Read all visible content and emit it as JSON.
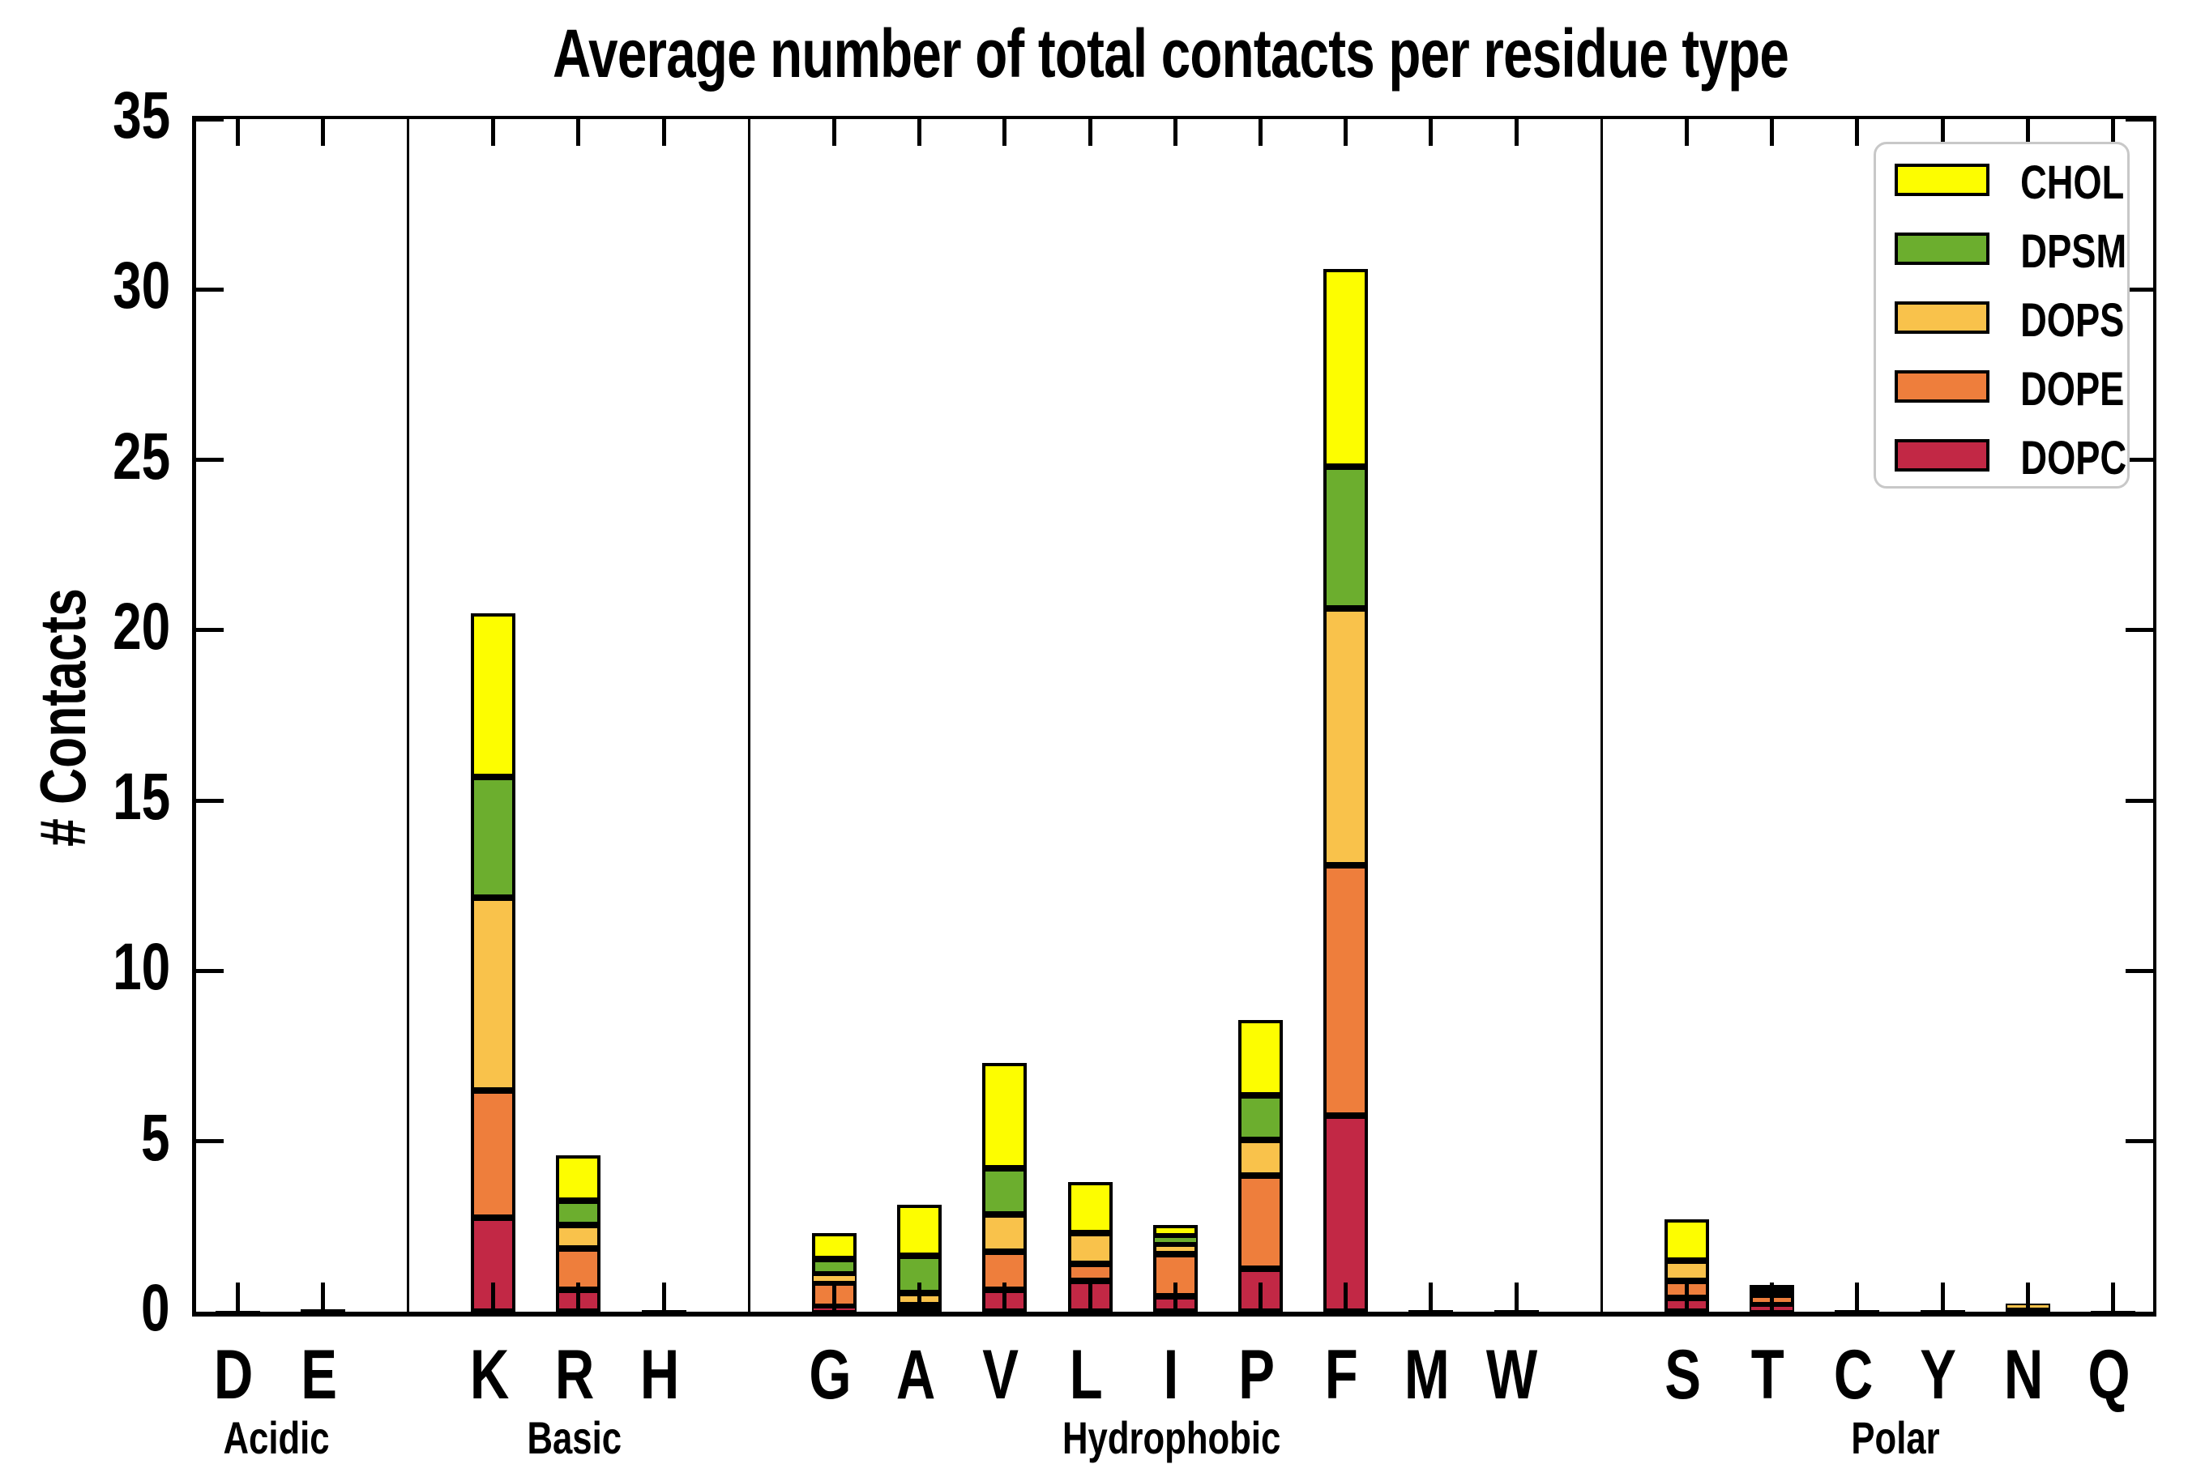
{
  "chart_data": {
    "type": "bar",
    "stacked": true,
    "title": "Average number of total contacts per residue type",
    "ylabel": "# Contacts",
    "xlabel": "",
    "ylim": [
      0,
      35
    ],
    "yticks": [
      0,
      5,
      10,
      15,
      20,
      25,
      30,
      35
    ],
    "grid": false,
    "legend_position": "upper right",
    "legend": [
      {
        "label": "CHOL",
        "color": "#FDFD00"
      },
      {
        "label": "DPSM",
        "color": "#6CAE2E"
      },
      {
        "label": "DOPS",
        "color": "#F9C24B"
      },
      {
        "label": "DOPE",
        "color": "#EE7E3C"
      },
      {
        "label": "DOPC",
        "color": "#C22845"
      }
    ],
    "groups": [
      {
        "label": "Acidic",
        "residues": [
          "D",
          "E"
        ]
      },
      {
        "label": "Basic",
        "residues": [
          "K",
          "R",
          "H"
        ]
      },
      {
        "label": "Hydrophobic",
        "residues": [
          "G",
          "A",
          "V",
          "L",
          "I",
          "P",
          "F",
          "M",
          "W"
        ]
      },
      {
        "label": "Polar",
        "residues": [
          "S",
          "T",
          "C",
          "Y",
          "N",
          "Q"
        ]
      }
    ],
    "categories": [
      "D",
      "E",
      "K",
      "R",
      "H",
      "G",
      "A",
      "V",
      "L",
      "I",
      "P",
      "F",
      "M",
      "W",
      "S",
      "T",
      "C",
      "Y",
      "N",
      "Q"
    ],
    "series": [
      {
        "name": "DOPC",
        "color": "#C22845",
        "values": [
          0.01,
          0.04,
          2.75,
          0.65,
          0.02,
          0.15,
          0.1,
          0.65,
          0.9,
          0.45,
          1.25,
          5.75,
          0.02,
          0.02,
          0.4,
          0.2,
          0.03,
          0.02,
          0.02,
          0.02
        ]
      },
      {
        "name": "DOPE",
        "color": "#EE7E3C",
        "values": [
          0.01,
          0.03,
          3.75,
          1.2,
          0.02,
          0.7,
          0.1,
          1.1,
          0.5,
          1.25,
          2.75,
          7.35,
          0.02,
          0.02,
          0.5,
          0.3,
          0.02,
          0.02,
          0.05,
          0.01
        ]
      },
      {
        "name": "DOPS",
        "color": "#F9C24B",
        "values": [
          0,
          0,
          5.65,
          0.7,
          0,
          0.25,
          0.35,
          1.1,
          0.9,
          0.3,
          1.05,
          7.55,
          0,
          0,
          0.6,
          0.1,
          0,
          0,
          0.16,
          0
        ]
      },
      {
        "name": "DPSM",
        "color": "#6CAE2E",
        "values": [
          0,
          0,
          3.55,
          0.7,
          0,
          0.45,
          1.1,
          1.35,
          0,
          0.2,
          1.3,
          4.15,
          0,
          0,
          0,
          0.08,
          0,
          0,
          0,
          0
        ]
      },
      {
        "name": "CHOL",
        "color": "#FDFD00",
        "values": [
          0,
          0,
          4.8,
          1.35,
          0,
          0.75,
          1.5,
          3.1,
          1.5,
          0.35,
          2.2,
          5.8,
          0,
          0,
          1.2,
          0.1,
          0,
          0,
          0,
          0
        ]
      }
    ],
    "totals": {
      "K": 20.5,
      "R": 4.6,
      "G": 2.3,
      "A": 3.15,
      "V": 7.3,
      "L": 3.8,
      "I": 2.55,
      "P": 8.55,
      "F": 30.6,
      "S": 2.7,
      "T": 0.78,
      "N": 0.23
    }
  }
}
